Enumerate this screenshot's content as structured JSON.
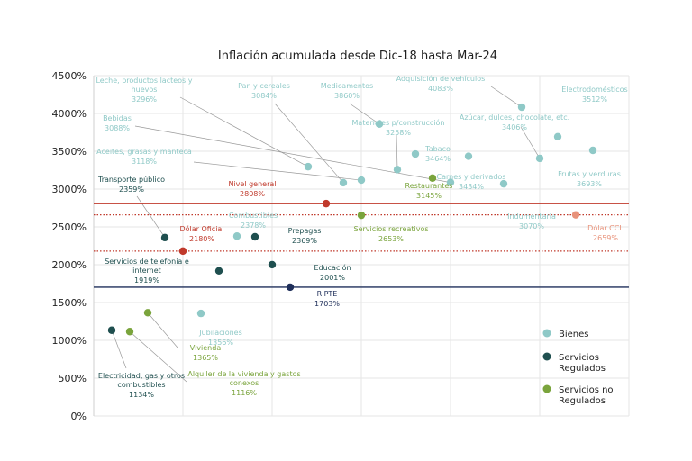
{
  "chart_data": {
    "type": "scatter",
    "title": "Inflación acumulada desde Dic-18 hasta Mar-24",
    "xlabel": "",
    "ylabel": "",
    "ylim": [
      0,
      4500
    ],
    "y_ticks": [
      "0%",
      "500%",
      "1000%",
      "1500%",
      "2000%",
      "2500%",
      "3000%",
      "3500%",
      "4000%",
      "4500%"
    ],
    "grid": true,
    "legend_position": "right",
    "colors": {
      "bienes": "#8fc9c7",
      "servicios_regulados": "#1f4f4f",
      "servicios_no_regulados": "#7aa43c",
      "nivel_general": "#c0392b",
      "dolar_oficial": "#c0392b",
      "dolar_ccl": "#e8927a",
      "ripte": "#1f2f5a"
    },
    "series": [
      {
        "name": "Bienes",
        "color_key": "bienes",
        "points": [
          {
            "label": "Leche, productos lacteos y huevos",
            "value": "3296%",
            "y": 3296
          },
          {
            "label": "Pan y cereales",
            "value": "3084%",
            "y": 3084
          },
          {
            "label": "Medicamentos",
            "value": "3860%",
            "y": 3860
          },
          {
            "label": "Adquisición de vehículos",
            "value": "4083%",
            "y": 4083
          },
          {
            "label": "Electrodomésticos",
            "value": "3512%",
            "y": 3512
          },
          {
            "label": "Bebidas",
            "value": "3088%",
            "y": 3088
          },
          {
            "label": "Materiales p/construcción",
            "value": "3258%",
            "y": 3258
          },
          {
            "label": "Azúcar, dulces, chocolate, etc.",
            "value": "3406%",
            "y": 3406
          },
          {
            "label": "Aceites, grasas y manteca",
            "value": "3118%",
            "y": 3118
          },
          {
            "label": "Tabaco",
            "value": "3464%",
            "y": 3464
          },
          {
            "label": "Carnes y derivados",
            "value": "3434%",
            "y": 3434
          },
          {
            "label": "Frutas y verduras",
            "value": "3693%",
            "y": 3693
          },
          {
            "label": "Indumentaria",
            "value": "3070%",
            "y": 3070
          },
          {
            "label": "Combustibles",
            "value": "2378%",
            "y": 2378
          },
          {
            "label": "Jubilaciones",
            "value": "1356%",
            "y": 1356
          }
        ]
      },
      {
        "name": "Servicios Regulados",
        "color_key": "servicios_regulados",
        "points": [
          {
            "label": "Transporte público",
            "value": "2359%",
            "y": 2359
          },
          {
            "label": "Prepagas",
            "value": "2369%",
            "y": 2369
          },
          {
            "label": "Servicios de telefonía e internet",
            "value": "1919%",
            "y": 1919
          },
          {
            "label": "Educación",
            "value": "2001%",
            "y": 2001
          },
          {
            "label": "Electricidad, gas y otros combustibles",
            "value": "1134%",
            "y": 1134
          }
        ]
      },
      {
        "name": "Servicios no Regulados",
        "color_key": "servicios_no_regulados",
        "points": [
          {
            "label": "Restaurantes",
            "value": "3145%",
            "y": 3145
          },
          {
            "label": "Servicios recreativos",
            "value": "2653%",
            "y": 2653
          },
          {
            "label": "Vivienda",
            "value": "1365%",
            "y": 1365
          },
          {
            "label": "Alquiler de la vivienda y gastos conexos",
            "value": "1116%",
            "y": 1116
          }
        ]
      },
      {
        "name": "",
        "color_key": "nivel_general",
        "points": [
          {
            "label": "Nivel general",
            "value": "2808%",
            "y": 2808
          }
        ]
      },
      {
        "name": "",
        "color_key": "dolar_oficial",
        "points": [
          {
            "label": "Dólar Oficial",
            "value": "2180%",
            "y": 2180
          }
        ]
      },
      {
        "name": "",
        "color_key": "dolar_ccl",
        "points": [
          {
            "label": "Dólar CCL",
            "value": "2659%",
            "y": 2659
          }
        ]
      },
      {
        "name": "",
        "color_key": "ripte",
        "points": [
          {
            "label": "RIPTE",
            "value": "1703%",
            "y": 1703
          }
        ]
      }
    ],
    "reference_lines": [
      {
        "name": "Nivel general",
        "y": 2808,
        "style": "solid",
        "color_key": "nivel_general"
      },
      {
        "name": "Dólar CCL",
        "y": 2659,
        "style": "dotted",
        "color_key": "nivel_general"
      },
      {
        "name": "Dólar Oficial",
        "y": 2180,
        "style": "dotted",
        "color_key": "nivel_general"
      },
      {
        "name": "RIPTE",
        "y": 1703,
        "style": "solid",
        "color_key": "ripte"
      }
    ],
    "legend": [
      {
        "label": "Bienes",
        "color_key": "bienes"
      },
      {
        "label": "Servicios Regulados",
        "color_key": "servicios_regulados"
      },
      {
        "label": "Servicios no Regulados",
        "color_key": "servicios_no_regulados"
      }
    ]
  }
}
